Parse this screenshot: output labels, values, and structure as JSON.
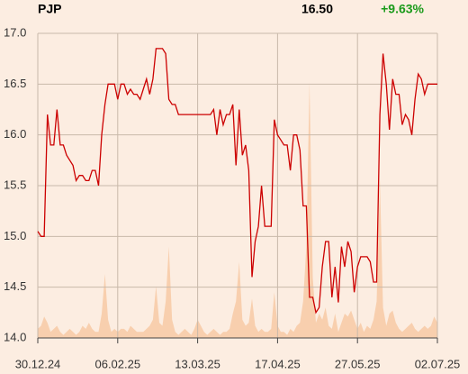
{
  "chart_data": {
    "type": "line",
    "ticker": "PJP",
    "last_price": "16.50",
    "change": "+9.63%",
    "x": [
      0,
      1,
      2,
      3,
      4,
      5,
      6,
      7,
      8,
      9,
      10,
      11,
      12,
      13,
      14,
      15,
      16,
      17,
      18,
      19,
      20,
      21,
      22,
      23,
      24,
      25,
      26,
      27,
      28,
      29,
      30,
      31,
      32,
      33,
      34,
      35,
      36,
      37,
      38,
      39,
      40,
      41,
      42,
      43,
      44,
      45,
      46,
      47,
      48,
      49,
      50,
      51,
      52,
      53,
      54,
      55,
      56,
      57,
      58,
      59,
      60,
      61,
      62,
      63,
      64,
      65,
      66,
      67,
      68,
      69,
      70,
      71,
      72,
      73,
      74,
      75,
      76,
      77,
      78,
      79,
      80,
      81,
      82,
      83,
      84,
      85,
      86,
      87,
      88,
      89,
      90,
      91,
      92,
      93,
      94,
      95,
      96,
      97,
      98,
      99,
      100,
      101,
      102,
      103,
      104,
      105,
      106,
      107,
      108,
      109,
      110,
      111,
      112,
      113,
      114,
      115,
      116,
      117,
      118,
      119,
      120,
      121,
      122,
      123,
      124,
      125
    ],
    "series": [
      {
        "name": "price",
        "color": "#cc0000",
        "values": [
          15.05,
          15.0,
          15.0,
          16.2,
          15.9,
          15.9,
          16.25,
          15.9,
          15.9,
          15.8,
          15.75,
          15.7,
          15.55,
          15.6,
          15.6,
          15.55,
          15.55,
          15.65,
          15.65,
          15.5,
          16.0,
          16.3,
          16.5,
          16.5,
          16.5,
          16.35,
          16.5,
          16.5,
          16.4,
          16.45,
          16.4,
          16.4,
          16.35,
          16.45,
          16.55,
          16.4,
          16.55,
          16.85,
          16.85,
          16.85,
          16.8,
          16.35,
          16.3,
          16.3,
          16.2,
          16.2,
          16.2,
          16.2,
          16.2,
          16.2,
          16.2,
          16.2,
          16.2,
          16.2,
          16.2,
          16.25,
          16.0,
          16.25,
          16.1,
          16.2,
          16.2,
          16.3,
          15.7,
          16.25,
          15.8,
          15.9,
          15.65,
          14.6,
          14.95,
          15.1,
          15.5,
          15.1,
          15.1,
          15.1,
          16.15,
          16.0,
          15.95,
          15.9,
          15.9,
          15.65,
          16.0,
          16.0,
          15.85,
          15.3,
          15.3,
          14.4,
          14.4,
          14.25,
          14.3,
          14.7,
          14.95,
          14.95,
          14.4,
          14.7,
          14.35,
          14.9,
          14.7,
          14.95,
          14.85,
          14.45,
          14.7,
          14.8,
          14.8,
          14.8,
          14.75,
          14.55,
          14.55,
          16.2,
          16.8,
          16.5,
          16.05,
          16.55,
          16.4,
          16.4,
          16.1,
          16.2,
          16.15,
          16.0,
          16.35,
          16.6,
          16.55,
          16.4,
          16.5,
          16.5,
          16.5,
          16.5
        ]
      },
      {
        "name": "volume",
        "color": "#f8cfae",
        "axis": "y2",
        "values": [
          3,
          4,
          7,
          5,
          2,
          3,
          4,
          2,
          1,
          2,
          3,
          2,
          1,
          2,
          4,
          3,
          5,
          3,
          2,
          2,
          8,
          21,
          6,
          2,
          3,
          2,
          3,
          3,
          2,
          4,
          3,
          2,
          2,
          2,
          3,
          4,
          6,
          17,
          5,
          4,
          12,
          30,
          6,
          2,
          1,
          2,
          3,
          2,
          1,
          3,
          6,
          4,
          2,
          1,
          2,
          3,
          2,
          1,
          2,
          2,
          3,
          8,
          12,
          25,
          6,
          4,
          5,
          13,
          4,
          2,
          3,
          2,
          2,
          3,
          15,
          4,
          2,
          2,
          1,
          3,
          2,
          4,
          5,
          12,
          30,
          84,
          20,
          5,
          8,
          6,
          10,
          4,
          3,
          8,
          2,
          5,
          8,
          7,
          9,
          6,
          3,
          5,
          2,
          4,
          3,
          6,
          12,
          52,
          10,
          4,
          8,
          9,
          5,
          3,
          2,
          3,
          4,
          5,
          3,
          2,
          3,
          4,
          3,
          4,
          7,
          5
        ]
      }
    ],
    "xlim": [
      0,
      125
    ],
    "xticks": [
      {
        "value": 0,
        "label": "30.12.24"
      },
      {
        "value": 25,
        "label": "06.02.25"
      },
      {
        "value": 50,
        "label": "13.03.25"
      },
      {
        "value": 75,
        "label": "17.04.25"
      },
      {
        "value": 100,
        "label": "27.05.25"
      },
      {
        "value": 125,
        "label": "02.07.25"
      }
    ],
    "ylim": [
      14.0,
      17.0
    ],
    "yticks": [
      {
        "value": 14.0,
        "label": "14.0"
      },
      14.5,
      {
        "value": 15.0,
        "label": "15.0"
      },
      15.5,
      {
        "value": 16.0,
        "label": "16.0"
      },
      16.5,
      {
        "value": 17.0,
        "label": "17.0"
      }
    ],
    "y2lim": [
      0,
      100
    ],
    "grid": true
  }
}
